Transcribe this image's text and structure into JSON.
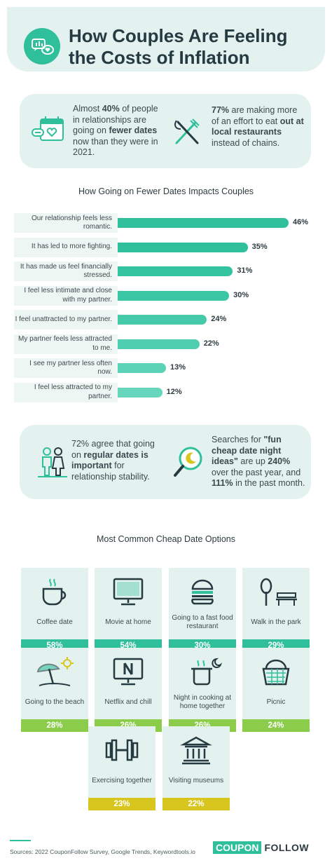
{
  "header": {
    "title_line1": "How Couples Are Feeling",
    "title_line2": "the Costs of Inflation"
  },
  "stats_top": {
    "left": {
      "pre": "Almost ",
      "bold1": "40%",
      "mid": " of people in relationships are going on ",
      "bold2": "fewer dates",
      "post": " now than they were in 2021."
    },
    "right": {
      "bold1": "77%",
      "mid": " are making more of an effort to eat ",
      "bold2": "out at local restaurants",
      "post": " instead of chains."
    }
  },
  "stats_mid": {
    "left": {
      "pre": "72% agree that going on ",
      "bold1": "regular dates is important",
      "post": " for relationship stability."
    },
    "right": {
      "pre": "Searches for ",
      "bold1": "\"fun cheap date night ideas\"",
      "mid": " are up ",
      "bold2": "240%",
      "post": " over the past year, and ",
      "bold3": "111%",
      "post2": " in the past month."
    }
  },
  "chart_data": {
    "type": "bar",
    "orientation": "horizontal",
    "title": "How Going on Fewer Dates Impacts Couples",
    "categories": [
      "Our relationship feels less romantic.",
      "It has led to more fighting.",
      "It has made us feel financially stressed.",
      "I feel less intimate and close with my partner.",
      "I feel unattracted to my partner.",
      "My partner feels less attracted to me.",
      "I see my partner less often now.",
      "I feel less attracted to my partner."
    ],
    "values": [
      46,
      35,
      31,
      30,
      24,
      22,
      13,
      12
    ],
    "value_labels": [
      "46%",
      "35%",
      "31%",
      "30%",
      "24%",
      "22%",
      "13%",
      "12%"
    ],
    "colors": [
      "#2fbf9b",
      "#2fbf9b",
      "#34c39f",
      "#3cc7a4",
      "#45cbaa",
      "#4fcfb0",
      "#5bd3b6",
      "#66d7bc"
    ],
    "xlim": [
      0,
      46
    ]
  },
  "options": {
    "title": "Most Common Cheap Date Options",
    "items": [
      {
        "label": "Coffee date",
        "pct": "58%",
        "icon": "coffee-cup-icon",
        "color": "#2fbf9b"
      },
      {
        "label": "Movie at home",
        "pct": "54%",
        "icon": "television-icon",
        "color": "#2fbf9b"
      },
      {
        "label": "Going to a fast food restaurant",
        "pct": "30%",
        "icon": "burger-icon",
        "color": "#2fbf9b"
      },
      {
        "label": "Walk in the park",
        "pct": "29%",
        "icon": "park-bench-icon",
        "color": "#2fbf9b"
      },
      {
        "label": "Going to the beach",
        "pct": "28%",
        "icon": "beach-umbrella-icon",
        "color": "#8bcc4a"
      },
      {
        "label": "Netflix and chill",
        "pct": "26%",
        "icon": "netflix-tv-icon",
        "color": "#8bcc4a"
      },
      {
        "label": "Night in cooking at home together",
        "pct": "26%",
        "icon": "cooking-pot-icon",
        "color": "#8bcc4a"
      },
      {
        "label": "Picnic",
        "pct": "24%",
        "icon": "picnic-basket-icon",
        "color": "#8bcc4a"
      },
      {
        "label": "Exercising together",
        "pct": "23%",
        "icon": "dumbbell-icon",
        "color": "#d8c61e"
      },
      {
        "label": "Visiting museums",
        "pct": "22%",
        "icon": "museum-icon",
        "color": "#d8c61e"
      }
    ]
  },
  "footer": {
    "sources": "Sources: 2022 CouponFollow Survey, Google Trends, Keywordtools.io",
    "brand_part1": "COUPON",
    "brand_part2": "FOLLOW"
  },
  "colors": {
    "accent": "#2fbf9b",
    "panel": "#e4f2ef",
    "text": "#2d3b40"
  }
}
